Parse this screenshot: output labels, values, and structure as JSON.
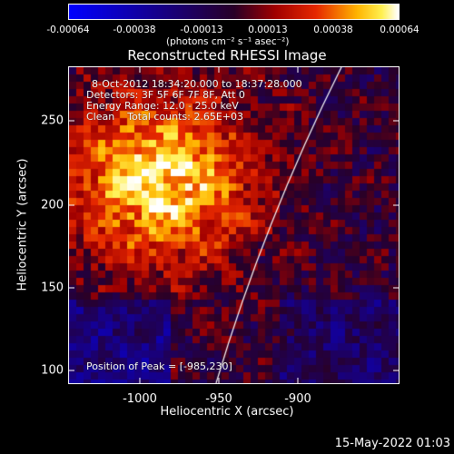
{
  "colorbar": {
    "ticks": [
      "-0.00064",
      "-0.00038",
      "-0.00013",
      "0.00013",
      "0.00038",
      "0.00064"
    ],
    "units": "(photons cm⁻² s⁻¹ asec⁻²)"
  },
  "title": "Reconstructed RHESSI Image",
  "info": {
    "time_range": "8-Oct-2012 18:34:20.000 to 18:37:28.000",
    "detectors": "Detectors: 3F 5F 6F 7F 8F, Att 0",
    "energy": "Energy Range: 12.0 - 25.0 keV",
    "clean": "Clean    Total counts: 2.65E+03",
    "peak": "Position of Peak = [-985,230]"
  },
  "axes": {
    "xlabel": "Heliocentric X (arcsec)",
    "ylabel": "Heliocentric Y (arcsec)",
    "xticks": [
      "-1000",
      "-950",
      "-900"
    ],
    "yticks": [
      "250",
      "200",
      "150",
      "100"
    ]
  },
  "timestamp": "15-May-2022 01:03",
  "colors": {
    "negative_min": "#0000ff",
    "zero": "#000000",
    "positive_max": "#ffffff",
    "limb": "#ffffff"
  }
}
